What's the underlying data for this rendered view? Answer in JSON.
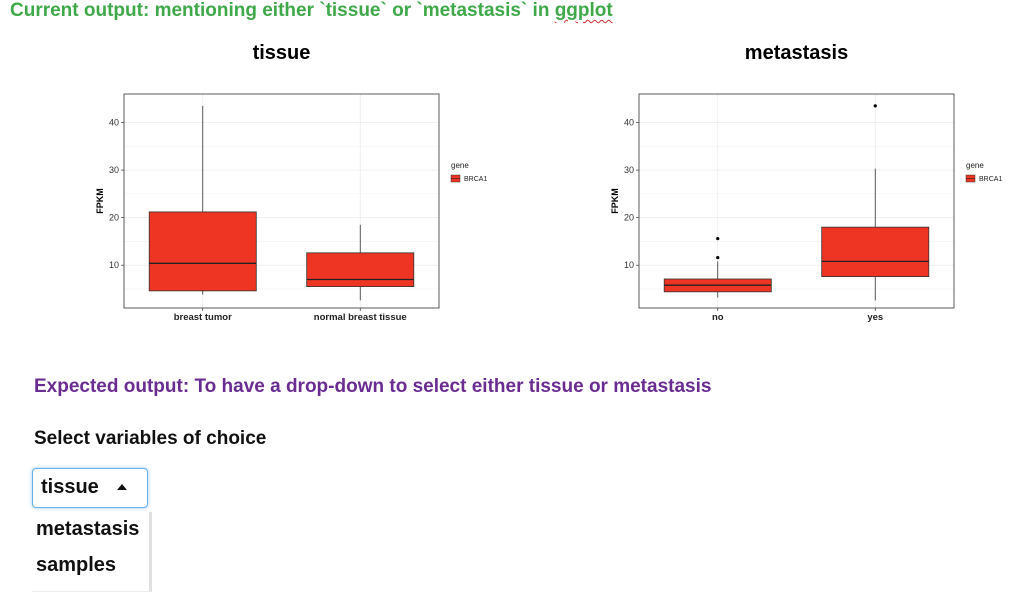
{
  "header": {
    "current_prefix": "Current output: mentioning either `tissue` or `metastasis` in ",
    "current_tail": "ggplot",
    "current_color": "#3fa94a"
  },
  "chart_data": [
    {
      "type": "boxplot",
      "title": "tissue",
      "xlabel": "",
      "ylabel": "FPKM",
      "categories": [
        "breast tumor",
        "normal breast tissue"
      ],
      "series": [
        {
          "name": "BRCA1",
          "color": "#ee3524",
          "boxes": [
            {
              "category": "breast tumor",
              "whisker_low": 3.8,
              "q1": 4.6,
              "median": 10.4,
              "q3": 21.2,
              "whisker_high": 43.5,
              "outliers": []
            },
            {
              "category": "normal breast tissue",
              "whisker_low": 2.6,
              "q1": 5.5,
              "median": 7.0,
              "q3": 12.6,
              "whisker_high": 18.5,
              "outliers": []
            }
          ]
        }
      ],
      "ylim": [
        1,
        46
      ],
      "yticks": [
        10,
        20,
        30,
        40
      ],
      "legend": {
        "title": "gene",
        "items": [
          "BRCA1"
        ],
        "position": "right"
      },
      "grid": true
    },
    {
      "type": "boxplot",
      "title": "metastasis",
      "xlabel": "",
      "ylabel": "FPKM",
      "categories": [
        "no",
        "yes"
      ],
      "series": [
        {
          "name": "BRCA1",
          "color": "#ee3524",
          "boxes": [
            {
              "category": "no",
              "whisker_low": 3.2,
              "q1": 4.4,
              "median": 5.8,
              "q3": 7.1,
              "whisker_high": 10.8,
              "outliers": [
                11.6,
                15.6
              ]
            },
            {
              "category": "yes",
              "whisker_low": 2.6,
              "q1": 7.6,
              "median": 10.8,
              "q3": 18.0,
              "whisker_high": 30.3,
              "outliers": [
                43.5
              ]
            }
          ]
        }
      ],
      "ylim": [
        1,
        46
      ],
      "yticks": [
        10,
        20,
        30,
        40
      ],
      "legend": {
        "title": "gene",
        "items": [
          "BRCA1"
        ],
        "position": "right"
      },
      "grid": true
    }
  ],
  "expected": {
    "heading": "Expected output: To have a drop-down to select either tissue or metastasis",
    "color": "#6a2c91"
  },
  "select": {
    "label": "Select variables of choice",
    "selected": "tissue",
    "options": [
      "metastasis",
      "samples"
    ]
  }
}
